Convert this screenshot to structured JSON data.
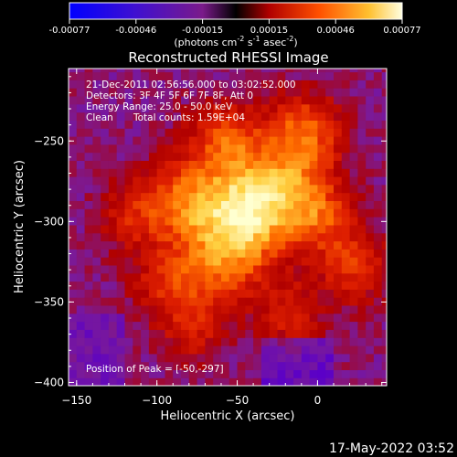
{
  "colorbar": {
    "ticks": [
      "-0.00077",
      "-0.00046",
      "-0.00015",
      "0.00015",
      "0.00046",
      "0.00077"
    ],
    "units_prefix": "(photons cm",
    "units_exp1": "-2",
    "units_mid": " s",
    "units_exp2": "-1",
    "units_mid2": " asec",
    "units_exp3": "-2",
    "units_suffix": ")"
  },
  "info": {
    "line1": "21-Dec-2011 02:56:56.000 to 03:02:52.000",
    "line2": "Detectors: 3F 4F 5F 6F 7F 8F, Att 0",
    "line3": "Energy Range: 25.0 - 50.0 keV",
    "line4a": "Clean",
    "line4b": "Total counts: 1.59E+04",
    "peak": "Position of Peak = [-50,-297]"
  },
  "footer_timestamp": "17-May-2022 03:52",
  "chart_data": {
    "type": "heatmap",
    "title": "Reconstructed RHESSI Image",
    "xlabel": "Heliocentric X (arcsec)",
    "ylabel": "Heliocentric Y (arcsec)",
    "xlim": [
      -155,
      43
    ],
    "ylim": [
      -402,
      -205
    ],
    "xticks": [
      -150,
      -100,
      -50,
      0
    ],
    "xtick_labels": [
      "−150",
      "−100",
      "−50",
      "0"
    ],
    "yticks": [
      -250,
      -300,
      -350,
      -400
    ],
    "ytick_labels": [
      "−250",
      "−300",
      "−350",
      "−400"
    ],
    "value_range": [
      -0.00077,
      0.00077
    ],
    "peak": [
      -50,
      -297
    ],
    "colormap": [
      "#0000ff",
      "#5a00c8",
      "#7a1a9a",
      "#b00000",
      "#e02000",
      "#ff7000",
      "#ffd040",
      "#ffffd0"
    ]
  }
}
